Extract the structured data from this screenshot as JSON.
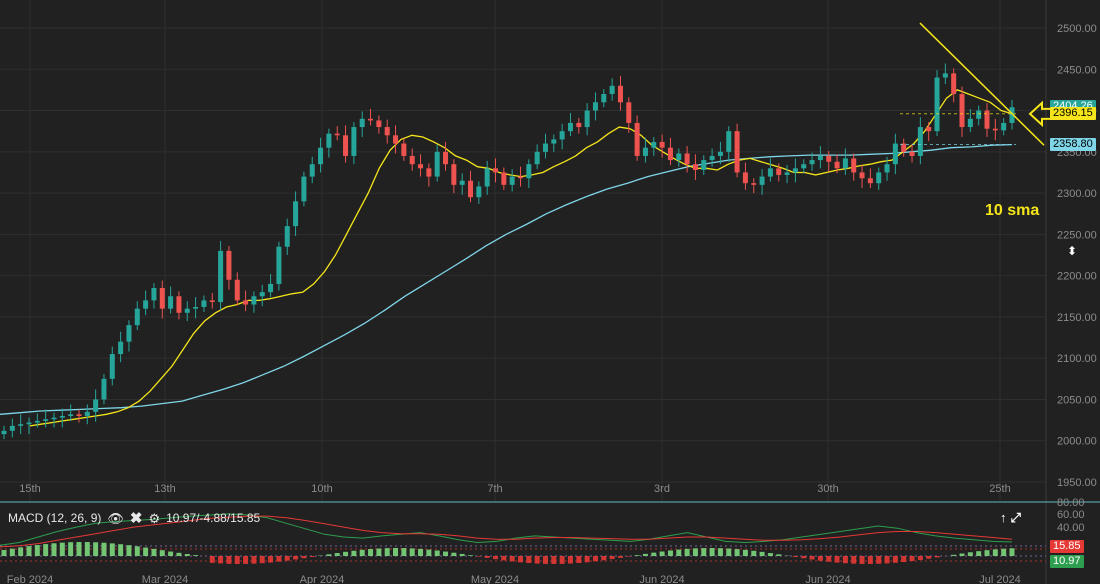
{
  "chart_data": {
    "type": "candlestick",
    "price_axis": {
      "ticks": [
        2500,
        2450,
        2400,
        2350,
        2300,
        2250,
        2200,
        2150,
        2100,
        2050,
        2000,
        1950
      ],
      "labels": [
        "2500.00",
        "2450.00",
        "2400.00",
        "2350.00",
        "2300.00",
        "2250.00",
        "2200.00",
        "2150.00",
        "2100.00",
        "2050.00",
        "2000.00",
        "1950.00"
      ],
      "range": [
        1925,
        2530
      ]
    },
    "time_axis": [
      {
        "date": "15th",
        "month": "Feb 2024"
      },
      {
        "date": "13th",
        "month": "Mar 2024"
      },
      {
        "date": "10th",
        "month": "Apr 2024"
      },
      {
        "date": "7th",
        "month": "May 2024"
      },
      {
        "date": "3rd",
        "month": "Jun 2024"
      },
      {
        "date": "30th",
        "month": "Jun 2024"
      },
      {
        "date": "25th",
        "month": "Jul 2024"
      }
    ],
    "candles_close": [
      2012,
      2018,
      2020,
      2022,
      2024,
      2026,
      2028,
      2030,
      2032,
      2030,
      2035,
      2050,
      2075,
      2105,
      2120,
      2140,
      2160,
      2170,
      2185,
      2160,
      2175,
      2155,
      2160,
      2162,
      2170,
      2168,
      2230,
      2195,
      2170,
      2165,
      2175,
      2180,
      2190,
      2235,
      2260,
      2290,
      2320,
      2335,
      2355,
      2372,
      2370,
      2345,
      2380,
      2390,
      2388,
      2380,
      2370,
      2360,
      2345,
      2335,
      2330,
      2320,
      2350,
      2335,
      2310,
      2315,
      2295,
      2308,
      2330,
      2325,
      2310,
      2320,
      2318,
      2335,
      2350,
      2360,
      2365,
      2375,
      2385,
      2380,
      2400,
      2410,
      2420,
      2430,
      2410,
      2385,
      2345,
      2355,
      2362,
      2355,
      2340,
      2348,
      2335,
      2328,
      2340,
      2345,
      2350,
      2375,
      2325,
      2312,
      2310,
      2320,
      2330,
      2322,
      2325,
      2330,
      2335,
      2340,
      2345,
      2338,
      2330,
      2342,
      2325,
      2318,
      2312,
      2325,
      2335,
      2360,
      2350,
      2345,
      2380,
      2375,
      2440,
      2445,
      2420,
      2380,
      2390,
      2400,
      2378,
      2376,
      2385,
      2404
    ],
    "sma_yellow": {
      "name": "10 sma",
      "values": [
        2018,
        2020,
        2022,
        2024,
        2026,
        2028,
        2030,
        2032,
        2035,
        2040,
        2048,
        2060,
        2075,
        2090,
        2110,
        2130,
        2145,
        2155,
        2162,
        2165,
        2170,
        2170,
        2172,
        2175,
        2178,
        2180,
        2190,
        2205,
        2225,
        2250,
        2275,
        2300,
        2330,
        2352,
        2365,
        2370,
        2368,
        2362,
        2355,
        2345,
        2340,
        2332,
        2330,
        2325,
        2322,
        2320,
        2322,
        2325,
        2332,
        2338,
        2345,
        2355,
        2362,
        2372,
        2380,
        2378,
        2370,
        2358,
        2350,
        2342,
        2335,
        2330,
        2330,
        2328,
        2335,
        2340,
        2342,
        2338,
        2334,
        2330,
        2325,
        2325,
        2322,
        2325,
        2328,
        2330,
        2333,
        2335,
        2338,
        2340,
        2350,
        2360,
        2375,
        2395,
        2415,
        2425,
        2420,
        2415,
        2410,
        2400,
        2396.15
      ]
    },
    "sma_blue": {
      "values": [
        2032,
        2034,
        2036,
        2037,
        2038,
        2039,
        2040,
        2042,
        2045,
        2048,
        2055,
        2062,
        2070,
        2080,
        2090,
        2102,
        2115,
        2128,
        2142,
        2158,
        2175,
        2190,
        2205,
        2220,
        2236,
        2250,
        2262,
        2275,
        2286,
        2296,
        2305,
        2312,
        2320,
        2326,
        2332,
        2336,
        2340,
        2342,
        2344,
        2345,
        2346,
        2346,
        2346,
        2347,
        2348,
        2350,
        2352,
        2355,
        2356,
        2358,
        2358.8
      ]
    },
    "last_price_labels": [
      {
        "text": "2404.26",
        "color": "#26a69a"
      },
      {
        "text": "2396.15",
        "color": "#f5e51a"
      },
      {
        "text": "2358.80",
        "color": "#7ed6e8"
      }
    ],
    "annotation": "10 sma",
    "macd": {
      "label": "MACD (12, 26, 9)",
      "values_text": "10.97/-4.88/15.85",
      "axis_labels": [
        "80.00",
        "60.00",
        "40.00"
      ],
      "tags": [
        {
          "text": "15.85",
          "color": "#e53935"
        },
        {
          "text": "10.97",
          "color": "#2e9e4f"
        }
      ]
    }
  },
  "colors": {
    "up": "#26a69a",
    "down": "#ef5350",
    "sma10": "#f5e51a",
    "sma_long": "#7ed6e8",
    "background": "#212121",
    "grid": "#2f2f2f"
  },
  "icons": {
    "visibility": "eye-icon",
    "remove": "close-icon",
    "settings": "gear-icon",
    "move": "up-arrow-icon",
    "expand": "expand-icon",
    "scale": "scale-toggle-icon"
  }
}
